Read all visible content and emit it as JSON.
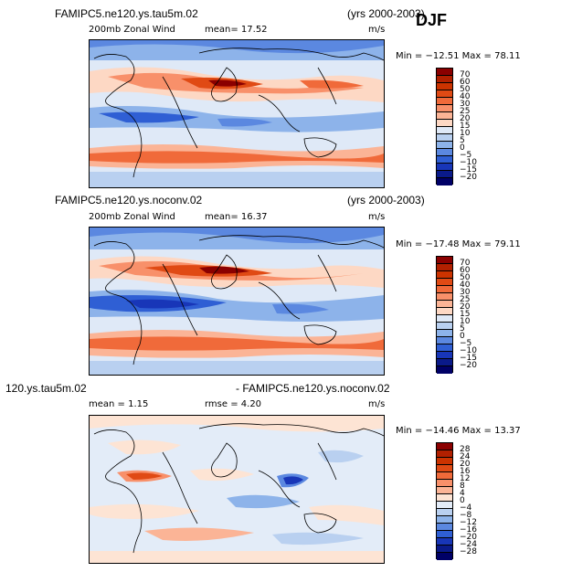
{
  "season": "DJF",
  "panels": [
    {
      "title": "FAMIPC5.ne120.ys.tau5m.02",
      "years": "(yrs 2000-2003)",
      "variable": "200mb Zonal Wind",
      "stat1": "mean=  17.52",
      "units": "m/s",
      "minmax": "Min = −12.51  Max =  78.11",
      "colorbar_levels": [
        "70",
        "60",
        "50",
        "40",
        "30",
        "25",
        "20",
        "15",
        "10",
        "5",
        "0",
        "−5",
        "−10",
        "−15",
        "−20"
      ],
      "colors": [
        "#8b0000",
        "#b22000",
        "#cc3300",
        "#e04a14",
        "#f06a3a",
        "#f8906a",
        "#fbb496",
        "#fdd8c4",
        "#dfe9f7",
        "#b9d0f0",
        "#8db3ea",
        "#5b88e0",
        "#2f5fd4",
        "#1836b8",
        "#0a1a8a",
        "#000066"
      ]
    },
    {
      "title": "FAMIPC5.ne120.ys.noconv.02",
      "years": "(yrs 2000-2003)",
      "variable": "200mb Zonal Wind",
      "stat1": "mean=  16.37",
      "units": "m/s",
      "minmax": "Min = −17.48  Max =  79.11",
      "colorbar_levels": [
        "70",
        "60",
        "50",
        "40",
        "30",
        "25",
        "20",
        "15",
        "10",
        "5",
        "0",
        "−5",
        "−10",
        "−15",
        "−20"
      ],
      "colors": [
        "#8b0000",
        "#b22000",
        "#cc3300",
        "#e04a14",
        "#f06a3a",
        "#f8906a",
        "#fbb496",
        "#fdd8c4",
        "#dfe9f7",
        "#b9d0f0",
        "#8db3ea",
        "#5b88e0",
        "#2f5fd4",
        "#1836b8",
        "#0a1a8a",
        "#000066"
      ]
    },
    {
      "title_left": "120.ys.tau5m.02",
      "title_right": "- FAMIPC5.ne120.ys.noconv.02",
      "stat1": "mean =   1.15",
      "stat2": "rmse =   4.20",
      "units": "m/s",
      "minmax": "Min = −14.46  Max =  13.37",
      "colorbar_levels": [
        "28",
        "24",
        "20",
        "16",
        "12",
        "8",
        "4",
        "0",
        "−4",
        "−8",
        "−12",
        "−16",
        "−20",
        "−24",
        "−28"
      ],
      "colors": [
        "#8b0000",
        "#b22000",
        "#cc3300",
        "#e04a14",
        "#f06a3a",
        "#f8906a",
        "#fbb496",
        "#fde4d4",
        "#e3ecf8",
        "#b9d0f0",
        "#8db3ea",
        "#5b88e0",
        "#2f5fd4",
        "#1836b8",
        "#0a1a8a",
        "#000066"
      ]
    }
  ]
}
